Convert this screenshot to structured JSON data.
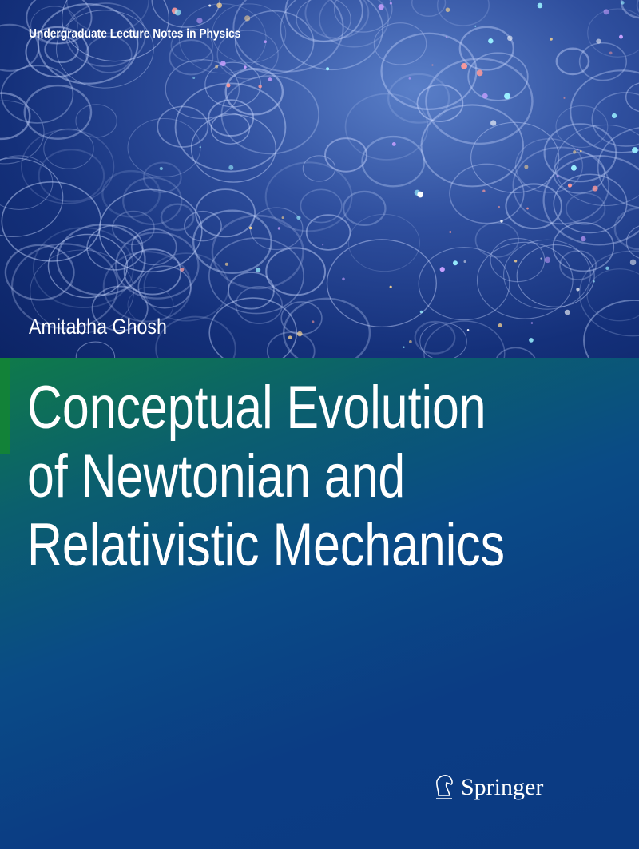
{
  "cover": {
    "series": "Undergraduate Lecture Notes in Physics",
    "author": "Amitabha Ghosh",
    "title_lines": [
      "Conceptual Evolution",
      "of Newtonian and",
      "Relativistic Mechanics"
    ],
    "publisher": "Springer",
    "publisher_logo_icon": "springer-horse-icon",
    "colors": {
      "background": "#0b3a82",
      "accent_green": "#128238",
      "text": "#ffffff"
    }
  }
}
